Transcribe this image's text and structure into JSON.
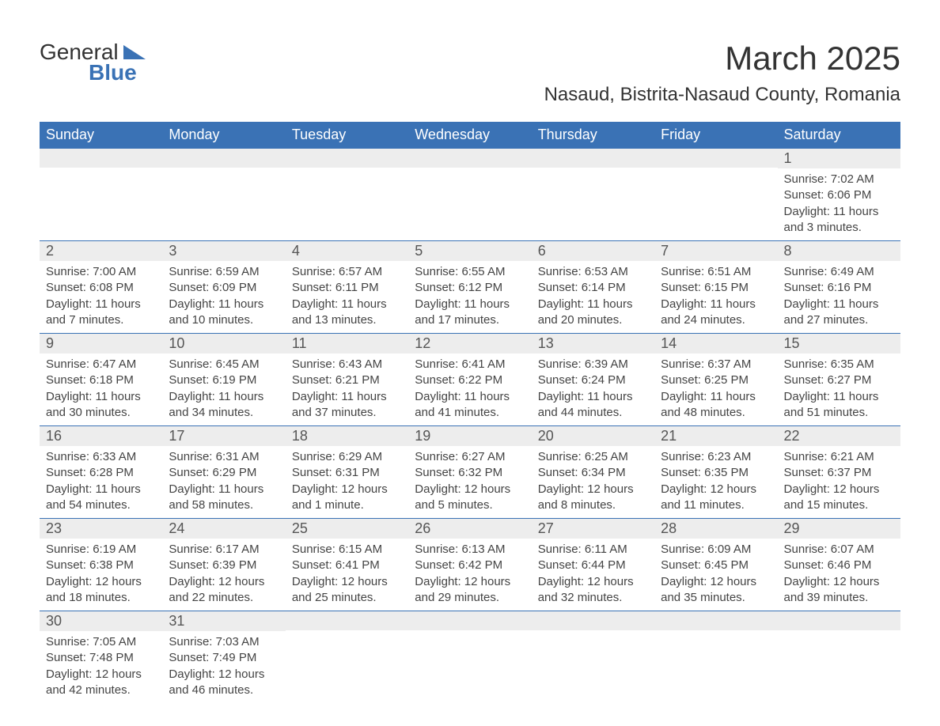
{
  "logo": {
    "text1": "General",
    "text2": "Blue"
  },
  "title": "March 2025",
  "location": "Nasaud, Bistrita-Nasaud County, Romania",
  "colors": {
    "header_bg": "#3a72b5",
    "header_text": "#ffffff",
    "daynum_bg": "#ededed",
    "text": "#444444",
    "border": "#3a72b5"
  },
  "typography": {
    "title_fontsize": 42,
    "location_fontsize": 24,
    "header_fontsize": 18,
    "body_fontsize": 15
  },
  "layout": {
    "columns": 7,
    "rows": 6,
    "first_day_col": 6
  },
  "day_names": [
    "Sunday",
    "Monday",
    "Tuesday",
    "Wednesday",
    "Thursday",
    "Friday",
    "Saturday"
  ],
  "days": [
    {
      "n": 1,
      "sr": "7:02 AM",
      "ss": "6:06 PM",
      "dl": "11 hours and 3 minutes."
    },
    {
      "n": 2,
      "sr": "7:00 AM",
      "ss": "6:08 PM",
      "dl": "11 hours and 7 minutes."
    },
    {
      "n": 3,
      "sr": "6:59 AM",
      "ss": "6:09 PM",
      "dl": "11 hours and 10 minutes."
    },
    {
      "n": 4,
      "sr": "6:57 AM",
      "ss": "6:11 PM",
      "dl": "11 hours and 13 minutes."
    },
    {
      "n": 5,
      "sr": "6:55 AM",
      "ss": "6:12 PM",
      "dl": "11 hours and 17 minutes."
    },
    {
      "n": 6,
      "sr": "6:53 AM",
      "ss": "6:14 PM",
      "dl": "11 hours and 20 minutes."
    },
    {
      "n": 7,
      "sr": "6:51 AM",
      "ss": "6:15 PM",
      "dl": "11 hours and 24 minutes."
    },
    {
      "n": 8,
      "sr": "6:49 AM",
      "ss": "6:16 PM",
      "dl": "11 hours and 27 minutes."
    },
    {
      "n": 9,
      "sr": "6:47 AM",
      "ss": "6:18 PM",
      "dl": "11 hours and 30 minutes."
    },
    {
      "n": 10,
      "sr": "6:45 AM",
      "ss": "6:19 PM",
      "dl": "11 hours and 34 minutes."
    },
    {
      "n": 11,
      "sr": "6:43 AM",
      "ss": "6:21 PM",
      "dl": "11 hours and 37 minutes."
    },
    {
      "n": 12,
      "sr": "6:41 AM",
      "ss": "6:22 PM",
      "dl": "11 hours and 41 minutes."
    },
    {
      "n": 13,
      "sr": "6:39 AM",
      "ss": "6:24 PM",
      "dl": "11 hours and 44 minutes."
    },
    {
      "n": 14,
      "sr": "6:37 AM",
      "ss": "6:25 PM",
      "dl": "11 hours and 48 minutes."
    },
    {
      "n": 15,
      "sr": "6:35 AM",
      "ss": "6:27 PM",
      "dl": "11 hours and 51 minutes."
    },
    {
      "n": 16,
      "sr": "6:33 AM",
      "ss": "6:28 PM",
      "dl": "11 hours and 54 minutes."
    },
    {
      "n": 17,
      "sr": "6:31 AM",
      "ss": "6:29 PM",
      "dl": "11 hours and 58 minutes."
    },
    {
      "n": 18,
      "sr": "6:29 AM",
      "ss": "6:31 PM",
      "dl": "12 hours and 1 minute."
    },
    {
      "n": 19,
      "sr": "6:27 AM",
      "ss": "6:32 PM",
      "dl": "12 hours and 5 minutes."
    },
    {
      "n": 20,
      "sr": "6:25 AM",
      "ss": "6:34 PM",
      "dl": "12 hours and 8 minutes."
    },
    {
      "n": 21,
      "sr": "6:23 AM",
      "ss": "6:35 PM",
      "dl": "12 hours and 11 minutes."
    },
    {
      "n": 22,
      "sr": "6:21 AM",
      "ss": "6:37 PM",
      "dl": "12 hours and 15 minutes."
    },
    {
      "n": 23,
      "sr": "6:19 AM",
      "ss": "6:38 PM",
      "dl": "12 hours and 18 minutes."
    },
    {
      "n": 24,
      "sr": "6:17 AM",
      "ss": "6:39 PM",
      "dl": "12 hours and 22 minutes."
    },
    {
      "n": 25,
      "sr": "6:15 AM",
      "ss": "6:41 PM",
      "dl": "12 hours and 25 minutes."
    },
    {
      "n": 26,
      "sr": "6:13 AM",
      "ss": "6:42 PM",
      "dl": "12 hours and 29 minutes."
    },
    {
      "n": 27,
      "sr": "6:11 AM",
      "ss": "6:44 PM",
      "dl": "12 hours and 32 minutes."
    },
    {
      "n": 28,
      "sr": "6:09 AM",
      "ss": "6:45 PM",
      "dl": "12 hours and 35 minutes."
    },
    {
      "n": 29,
      "sr": "6:07 AM",
      "ss": "6:46 PM",
      "dl": "12 hours and 39 minutes."
    },
    {
      "n": 30,
      "sr": "7:05 AM",
      "ss": "7:48 PM",
      "dl": "12 hours and 42 minutes."
    },
    {
      "n": 31,
      "sr": "7:03 AM",
      "ss": "7:49 PM",
      "dl": "12 hours and 46 minutes."
    }
  ],
  "labels": {
    "sunrise": "Sunrise:",
    "sunset": "Sunset:",
    "daylight": "Daylight:"
  }
}
